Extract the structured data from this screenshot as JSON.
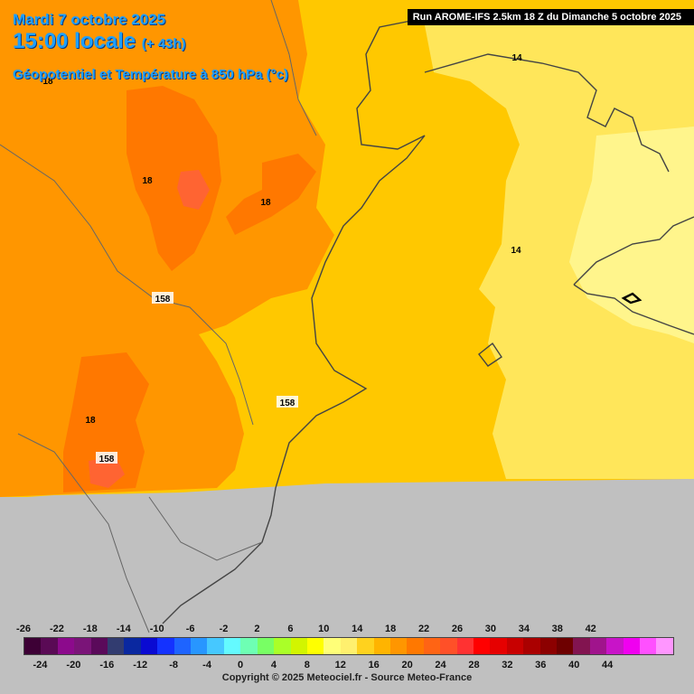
{
  "header": {
    "date": "Mardi 7 octobre 2025",
    "time": "15:00 locale",
    "lead": "(+ 43h)",
    "field": "Géopotentiel et Température à 850 hPa (°c)",
    "run": "Run AROME-IFS 2.5km 18 Z du Dimanche 5 octobre 2025"
  },
  "map_labels": [
    {
      "text": "14"
    },
    {
      "text": "14"
    },
    {
      "text": "18"
    },
    {
      "text": "18"
    },
    {
      "text": "18"
    },
    {
      "text": "158"
    },
    {
      "text": "158"
    },
    {
      "text": "158"
    },
    {
      "text": "18"
    }
  ],
  "legend": {
    "colors": [
      "#3d0035",
      "#5a0a55",
      "#8c0a8c",
      "#7a1478",
      "#5a0a5a",
      "#323c70",
      "#0a28a0",
      "#0a0ad2",
      "#1432ff",
      "#1e64ff",
      "#2896ff",
      "#46c8ff",
      "#64faff",
      "#6effb4",
      "#78ff64",
      "#aaff28",
      "#d2f500",
      "#ffff00",
      "#ffff78",
      "#fff06e",
      "#ffd21e",
      "#ffb400",
      "#ff9600",
      "#ff7800",
      "#ff6414",
      "#ff5028",
      "#ff3232",
      "#ff0000",
      "#e60000",
      "#c80000",
      "#aa0000",
      "#8c0000",
      "#6e0000",
      "#821450",
      "#a0148c",
      "#c814c8",
      "#f000f0",
      "#ff50ff",
      "#ff96ff"
    ],
    "ticks_top": [
      "-26",
      "-22",
      "-18",
      "-14",
      "-10",
      "-6",
      "-2",
      "2",
      "6",
      "10",
      "14",
      "18",
      "22",
      "26",
      "30",
      "34",
      "38",
      "42"
    ],
    "ticks_bottom": [
      "-24",
      "-20",
      "-16",
      "-12",
      "-8",
      "-4",
      "0",
      "4",
      "8",
      "12",
      "16",
      "20",
      "24",
      "28",
      "32",
      "36",
      "40",
      "44"
    ]
  },
  "copyright": "Copyright © 2025 Meteociel.fr - Source Meteo-France"
}
